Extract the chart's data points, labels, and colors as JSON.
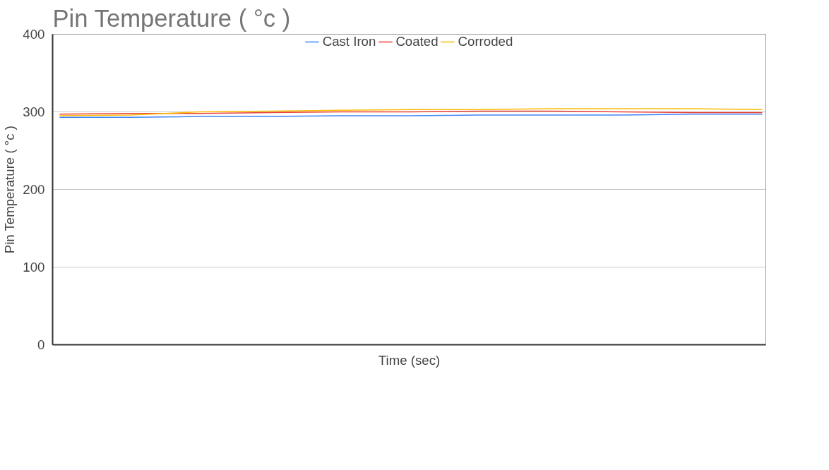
{
  "chart_data": {
    "type": "line",
    "title": "Pin Temperature ( °c )",
    "xlabel": "Time (sec)",
    "ylabel": "Pin Temperature ( °c )",
    "categories": [
      null,
      null,
      null,
      null,
      null,
      null,
      null,
      null,
      null,
      null,
      null
    ],
    "series": [
      {
        "name": "Cast Iron",
        "color": "#4285f4",
        "values": [
          293,
          293,
          294,
          294,
          295,
          295,
          296,
          296,
          296,
          297,
          297
        ]
      },
      {
        "name": "Coated",
        "color": "#ea4335",
        "values": [
          297,
          298,
          298,
          299,
          300,
          300,
          301,
          301,
          300,
          299,
          299
        ]
      },
      {
        "name": "Corroded",
        "color": "#fbbc04",
        "values": [
          295,
          296,
          300,
          301,
          302,
          303,
          303,
          304,
          304,
          304,
          303
        ]
      }
    ],
    "ylim": [
      0,
      400
    ],
    "yticks": [
      0,
      100,
      200,
      300,
      400
    ],
    "grid": "y",
    "legend": "top"
  }
}
